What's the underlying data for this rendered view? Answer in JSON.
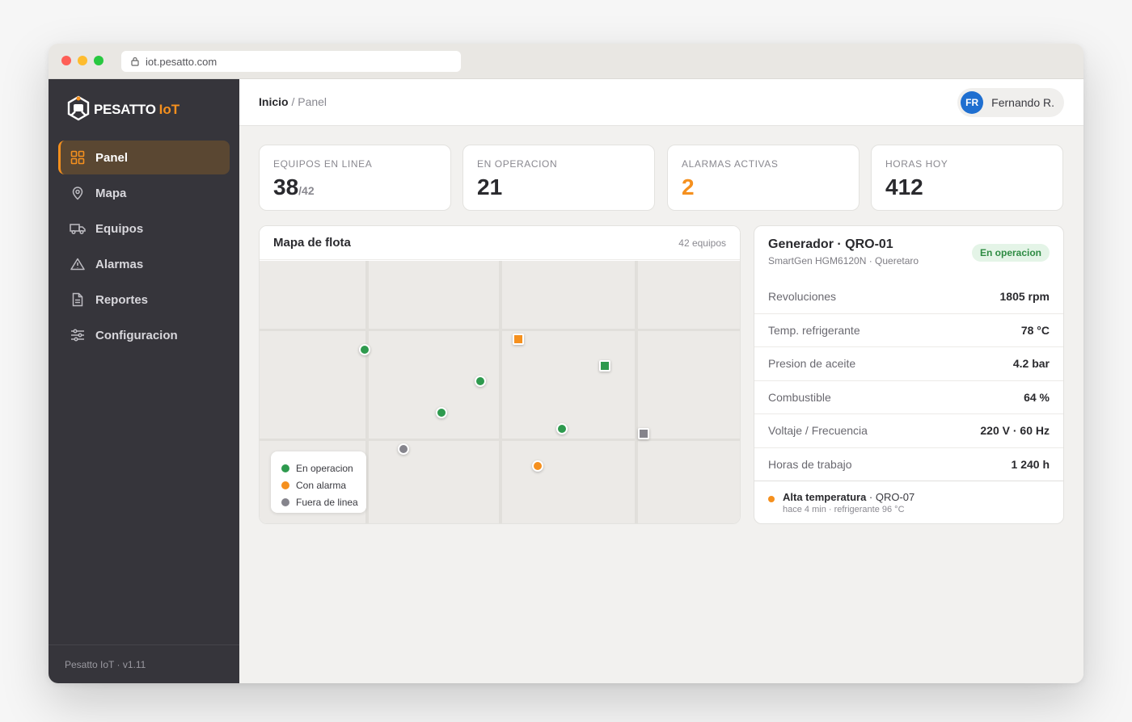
{
  "browser": {
    "url": "iot.pesatto.com"
  },
  "brand": {
    "name": "PESATTO",
    "suffix": "IoT"
  },
  "sidebar": {
    "items": [
      {
        "label": "Panel",
        "icon": "grid-icon",
        "active": true
      },
      {
        "label": "Mapa",
        "icon": "map-pin-icon"
      },
      {
        "label": "Equipos",
        "icon": "truck-icon"
      },
      {
        "label": "Alarmas",
        "icon": "warning-icon"
      },
      {
        "label": "Reportes",
        "icon": "document-icon"
      },
      {
        "label": "Configuracion",
        "icon": "sliders-icon"
      }
    ],
    "footer": "Pesatto IoT · v1.11"
  },
  "header": {
    "breadcrumb_home": "Inicio",
    "breadcrumb_sep": " / ",
    "breadcrumb_current": "Panel",
    "user_initials": "FR",
    "user_name": "Fernando R."
  },
  "kpis": [
    {
      "label": "EQUIPOS EN LINEA",
      "value": "38",
      "total": "/42"
    },
    {
      "label": "EN OPERACION",
      "value": "21"
    },
    {
      "label": "ALARMAS ACTIVAS",
      "value": "2"
    },
    {
      "label": "HORAS HOY",
      "value": "412"
    }
  ],
  "map": {
    "title": "Mapa de flota",
    "count": "42 equipos",
    "legend": [
      {
        "label": "En operacion",
        "color": "#2e9a4e"
      },
      {
        "label": "Con alarma",
        "color": "#f5901e"
      },
      {
        "label": "Fuera de linea",
        "color": "#85848c"
      }
    ]
  },
  "generator": {
    "title": "Generador · QRO-01",
    "subtitle": "SmartGen HGM6120N · Queretaro",
    "status": "En operacion",
    "metrics": [
      {
        "label": "Revoluciones",
        "value": "1805 rpm"
      },
      {
        "label": "Temp. refrigerante",
        "value": "78 °C"
      },
      {
        "label": "Presion de aceite",
        "value": "4.2 bar"
      },
      {
        "label": "Combustible",
        "value": "64 %"
      },
      {
        "label": "Voltaje / Frecuencia",
        "value": "220 V · 60 Hz"
      },
      {
        "label": "Horas de trabajo",
        "value": "1 240 h"
      }
    ],
    "alert": {
      "title": "Alta temperatura",
      "unit": " · QRO-07",
      "meta": "hace 4 min · refrigerante 96 °C"
    }
  },
  "colors": {
    "accent": "#f5901e",
    "operating": "#2e9a4e",
    "offline": "#85848c",
    "sidebar": "#36353b"
  }
}
